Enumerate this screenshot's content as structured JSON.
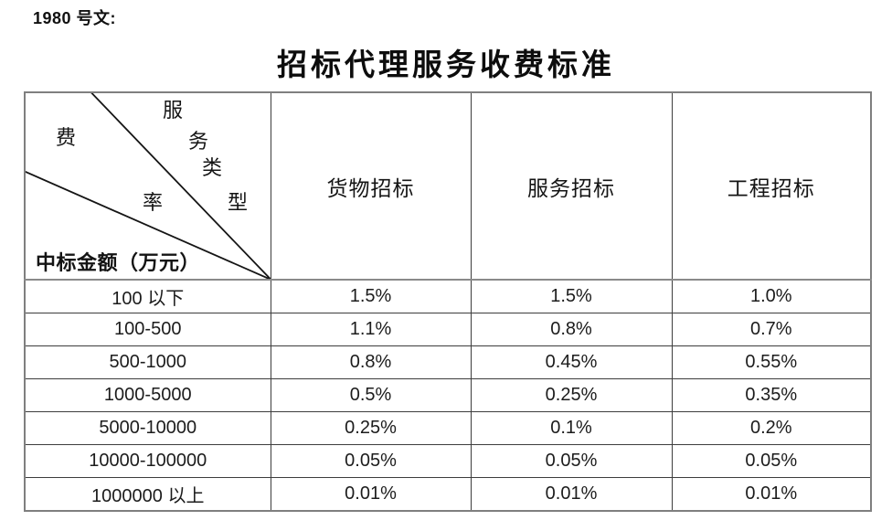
{
  "doc": {
    "ref_label": "1980 号文:",
    "title": "招标代理服务收费标准"
  },
  "table": {
    "corner": {
      "axis_top_label": "服务类型",
      "top_label_chars": [
        "服",
        "务",
        "类",
        "型"
      ],
      "mid_label_chars": [
        "费",
        "率"
      ],
      "bottom_label": "中标金额（万元）"
    },
    "columns": [
      "货物招标",
      "服务招标",
      "工程招标"
    ],
    "rows": [
      {
        "range": "100 以下",
        "values": [
          "1.5%",
          "1.5%",
          "1.0%"
        ]
      },
      {
        "range": "100-500",
        "values": [
          "1.1%",
          "0.8%",
          "0.7%"
        ]
      },
      {
        "range": "500-1000",
        "values": [
          "0.8%",
          "0.45%",
          "0.55%"
        ]
      },
      {
        "range": "1000-5000",
        "values": [
          "0.5%",
          "0.25%",
          "0.35%"
        ]
      },
      {
        "range": "5000-10000",
        "values": [
          "0.25%",
          "0.1%",
          "0.2%"
        ]
      },
      {
        "range": "10000-100000",
        "values": [
          "0.05%",
          "0.05%",
          "0.05%"
        ]
      },
      {
        "range": "1000000 以上",
        "values": [
          "0.01%",
          "0.01%",
          "0.01%"
        ]
      }
    ],
    "colors": {
      "outer_border": "#7f7f7f",
      "inner_border": "#3d3d3d",
      "text": "#1a1a1a"
    }
  }
}
